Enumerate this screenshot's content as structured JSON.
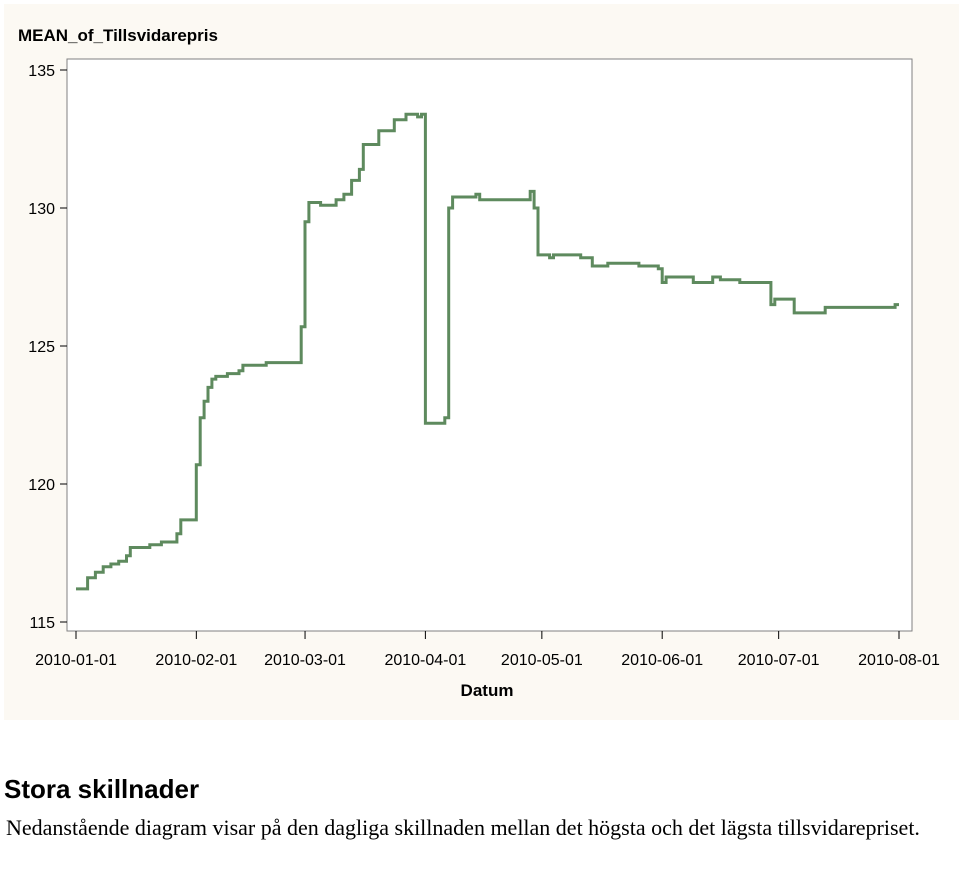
{
  "chart_data": {
    "type": "line",
    "step": true,
    "title": "",
    "ylabel_top": "MEAN_of_Tillsvidarepris",
    "xlabel": "Datum",
    "ylim": [
      115,
      135
    ],
    "yticks": [
      115,
      120,
      125,
      130,
      135
    ],
    "xlim": [
      "2010-01-01",
      "2010-08-01"
    ],
    "xticks": [
      "2010-01-01",
      "2010-02-01",
      "2010-03-01",
      "2010-04-01",
      "2010-05-01",
      "2010-06-01",
      "2010-07-01",
      "2010-08-01"
    ],
    "grid": false,
    "legend": "none",
    "line_color": "#5e8a5e",
    "series": [
      {
        "points": [
          [
            "2010-01-01",
            116.2
          ],
          [
            "2010-01-04",
            116.6
          ],
          [
            "2010-01-06",
            116.8
          ],
          [
            "2010-01-08",
            117.0
          ],
          [
            "2010-01-10",
            117.1
          ],
          [
            "2010-01-12",
            117.2
          ],
          [
            "2010-01-14",
            117.4
          ],
          [
            "2010-01-15",
            117.7
          ],
          [
            "2010-01-20",
            117.8
          ],
          [
            "2010-01-23",
            117.9
          ],
          [
            "2010-01-26",
            117.9
          ],
          [
            "2010-01-27",
            118.2
          ],
          [
            "2010-01-28",
            118.7
          ],
          [
            "2010-02-01",
            120.7
          ],
          [
            "2010-02-02",
            122.4
          ],
          [
            "2010-02-03",
            123.0
          ],
          [
            "2010-02-04",
            123.5
          ],
          [
            "2010-02-05",
            123.8
          ],
          [
            "2010-02-06",
            123.9
          ],
          [
            "2010-02-09",
            124.0
          ],
          [
            "2010-02-12",
            124.1
          ],
          [
            "2010-02-13",
            124.3
          ],
          [
            "2010-02-19",
            124.4
          ],
          [
            "2010-02-28",
            125.7
          ],
          [
            "2010-03-01",
            129.5
          ],
          [
            "2010-03-02",
            130.2
          ],
          [
            "2010-03-05",
            130.1
          ],
          [
            "2010-03-09",
            130.3
          ],
          [
            "2010-03-11",
            130.5
          ],
          [
            "2010-03-13",
            131.0
          ],
          [
            "2010-03-15",
            131.4
          ],
          [
            "2010-03-16",
            132.3
          ],
          [
            "2010-03-20",
            132.8
          ],
          [
            "2010-03-24",
            133.2
          ],
          [
            "2010-03-27",
            133.4
          ],
          [
            "2010-03-30",
            133.3
          ],
          [
            "2010-03-31",
            133.4
          ],
          [
            "2010-04-01",
            122.2
          ],
          [
            "2010-04-06",
            122.4
          ],
          [
            "2010-04-07",
            130.0
          ],
          [
            "2010-04-08",
            130.4
          ],
          [
            "2010-04-14",
            130.5
          ],
          [
            "2010-04-15",
            130.3
          ],
          [
            "2010-04-28",
            130.6
          ],
          [
            "2010-04-29",
            130.0
          ],
          [
            "2010-04-30",
            128.3
          ],
          [
            "2010-05-03",
            128.2
          ],
          [
            "2010-05-04",
            128.3
          ],
          [
            "2010-05-11",
            128.2
          ],
          [
            "2010-05-14",
            127.9
          ],
          [
            "2010-05-17",
            127.9
          ],
          [
            "2010-05-18",
            128.0
          ],
          [
            "2010-05-26",
            127.9
          ],
          [
            "2010-05-31",
            127.8
          ],
          [
            "2010-06-01",
            127.3
          ],
          [
            "2010-06-02",
            127.5
          ],
          [
            "2010-06-09",
            127.3
          ],
          [
            "2010-06-14",
            127.5
          ],
          [
            "2010-06-16",
            127.4
          ],
          [
            "2010-06-21",
            127.3
          ],
          [
            "2010-06-29",
            126.5
          ],
          [
            "2010-06-30",
            126.7
          ],
          [
            "2010-07-05",
            126.2
          ],
          [
            "2010-07-13",
            126.4
          ],
          [
            "2010-07-31",
            126.5
          ]
        ]
      }
    ]
  },
  "text": {
    "heading": "Stora skillnader",
    "body": "Nedanstående diagram visar på den dagliga skillnaden mellan det högsta och det lägsta tillsvidarepriset."
  }
}
